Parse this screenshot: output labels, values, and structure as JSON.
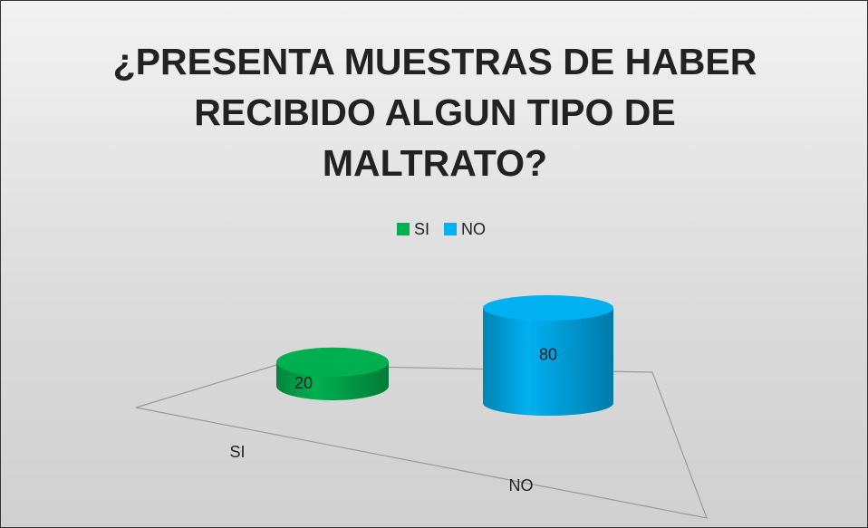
{
  "chart_data": {
    "type": "bar3d-cylinder",
    "title": "¿PRESENTA MUESTRAS DE HABER RECIBIDO ALGUN TIPO DE MALTRATO?",
    "categories": [
      "SI",
      "NO"
    ],
    "series": [
      {
        "name": "SI",
        "color": "#00b050",
        "values": [
          20,
          null
        ]
      },
      {
        "name": "NO",
        "color": "#00b0f0",
        "values": [
          null,
          80
        ]
      }
    ],
    "legend": "top"
  }
}
